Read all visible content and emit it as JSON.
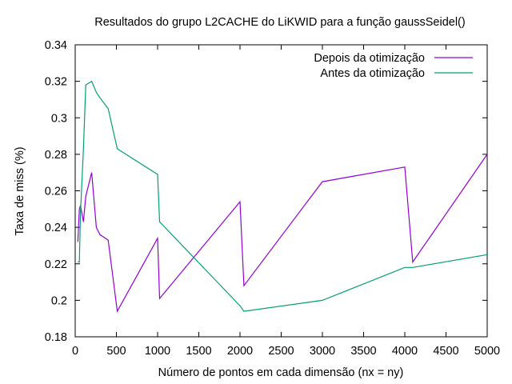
{
  "chart_data": {
    "type": "line",
    "title": "Resultados do grupo L2CACHE do LiKWID para a função gaussSeidel()",
    "xlabel": "Número de pontos em cada dimensão (nx = ny)",
    "ylabel": "Taxa de miss (%)",
    "xlim": [
      0,
      5000
    ],
    "ylim": [
      0.18,
      0.34
    ],
    "xticks": [
      0,
      500,
      1000,
      1500,
      2000,
      2500,
      3000,
      3500,
      4000,
      4500,
      5000
    ],
    "xtick_labels": [
      "0",
      "500",
      "1000",
      "1500",
      "2000",
      "2500",
      "3000",
      "3500",
      "4000",
      "4500",
      "5000"
    ],
    "yticks": [
      0.18,
      0.2,
      0.22,
      0.24,
      0.26,
      0.28,
      0.3,
      0.32,
      0.34
    ],
    "ytick_labels": [
      "0.18",
      "0.2",
      "0.22",
      "0.24",
      "0.26",
      "0.28",
      "0.3",
      "0.32",
      "0.34"
    ],
    "grid": false,
    "legend_position": "top-right",
    "series": [
      {
        "name": "Depois da otimização",
        "color": "#9400d3",
        "points": [
          [
            32,
            0.232
          ],
          [
            50,
            0.25
          ],
          [
            64,
            0.252
          ],
          [
            100,
            0.243
          ],
          [
            128,
            0.257
          ],
          [
            200,
            0.27
          ],
          [
            256,
            0.24
          ],
          [
            300,
            0.236
          ],
          [
            400,
            0.233
          ],
          [
            511,
            0.194
          ],
          [
            1000,
            0.234
          ],
          [
            1024,
            0.201
          ],
          [
            2000,
            0.254
          ],
          [
            2048,
            0.208
          ],
          [
            3000,
            0.265
          ],
          [
            4000,
            0.273
          ],
          [
            4096,
            0.221
          ],
          [
            5000,
            0.28
          ]
        ]
      },
      {
        "name": "Antes da otimização",
        "color": "#009e73",
        "points": [
          [
            32,
            0.221
          ],
          [
            50,
            0.221
          ],
          [
            64,
            0.248
          ],
          [
            100,
            0.283
          ],
          [
            128,
            0.318
          ],
          [
            200,
            0.32
          ],
          [
            256,
            0.314
          ],
          [
            300,
            0.311
          ],
          [
            400,
            0.305
          ],
          [
            511,
            0.283
          ],
          [
            1000,
            0.269
          ],
          [
            1024,
            0.243
          ],
          [
            2000,
            0.197
          ],
          [
            2048,
            0.194
          ],
          [
            3000,
            0.2
          ],
          [
            4000,
            0.218
          ],
          [
            4096,
            0.218
          ],
          [
            5000,
            0.225
          ]
        ]
      }
    ]
  }
}
